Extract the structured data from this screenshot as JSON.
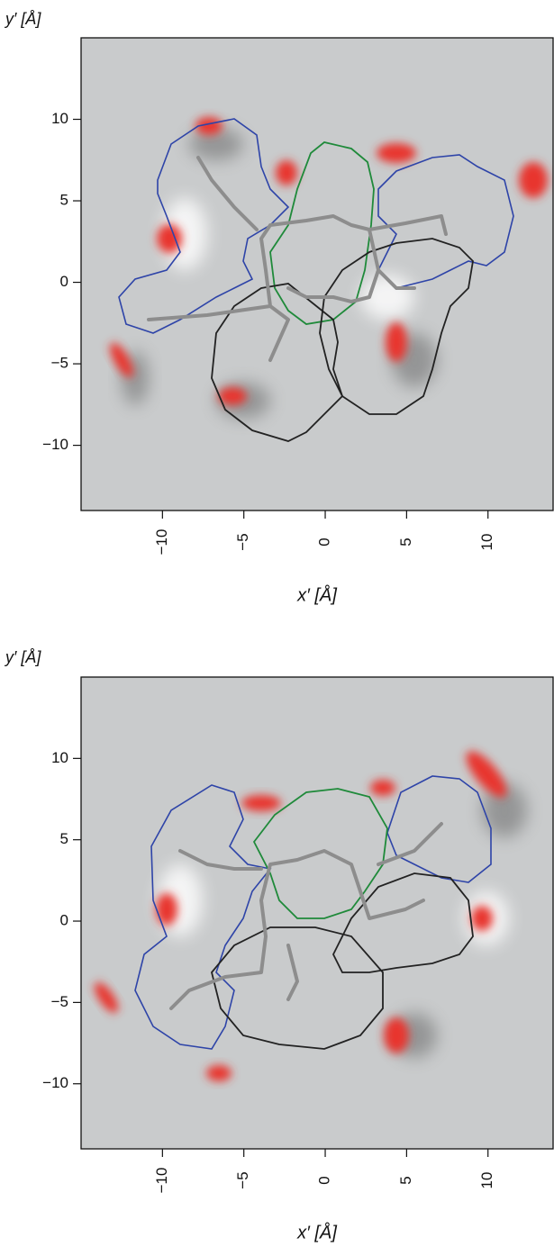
{
  "chart_data": [
    {
      "type": "image",
      "x_label": "x′ [Å]",
      "y_label": "y′ [Å]",
      "xlim": [
        -15,
        14
      ],
      "ylim": [
        -14,
        15
      ],
      "xticks": [
        {
          "value": -10,
          "label": "−10"
        },
        {
          "value": -5,
          "label": "−5"
        },
        0,
        5,
        10
      ],
      "yticks": [
        {
          "value": -10,
          "label": "−10"
        },
        {
          "value": -5,
          "label": "−5"
        },
        0,
        5,
        10
      ]
    },
    {
      "type": "image",
      "x_label": "x′ [Å]",
      "y_label": "y′ [Å]",
      "xlim": [
        -15,
        14
      ],
      "ylim": [
        -14,
        15
      ],
      "xticks": [
        {
          "value": -10,
          "label": "−10"
        },
        {
          "value": -5,
          "label": "−5"
        },
        0,
        5,
        10
      ],
      "yticks": [
        {
          "value": -10,
          "label": "−10"
        },
        {
          "value": -5,
          "label": "−5"
        },
        0,
        5,
        10
      ]
    }
  ]
}
